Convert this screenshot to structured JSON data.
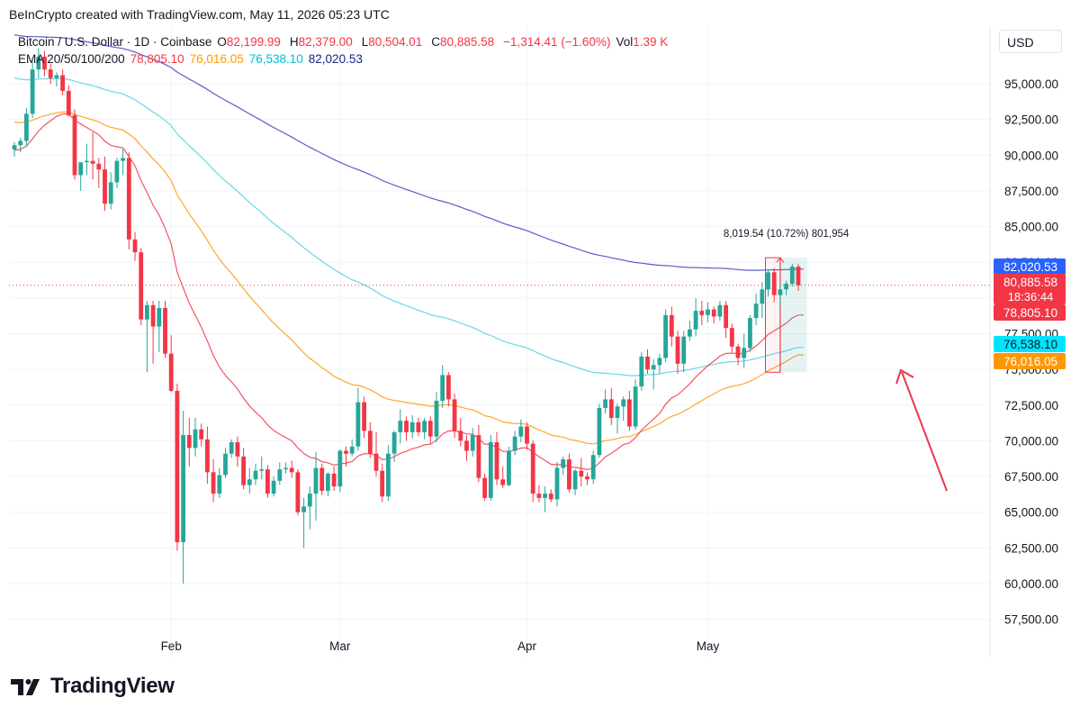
{
  "header": {
    "credit": "BeInCrypto created with TradingView.com, May 11, 2026 05:23 UTC"
  },
  "legend": {
    "symbol": "Bitcoin / U.S. Dollar · 1D · Coinbase",
    "open_label": "O",
    "open": "82,199.99",
    "high_label": "H",
    "high": "82,379.00",
    "low_label": "L",
    "low": "80,504.01",
    "close_label": "C",
    "close": "80,885.58",
    "change": "−1,314.41 (−1.60%)",
    "vol_label": "Vol",
    "vol": "1.39 K",
    "ema_label": "EMA 20/50/100/200",
    "ema20": "78,805.10",
    "ema50": "76,016.05",
    "ema100": "76,538.10",
    "ema200": "82,020.53"
  },
  "currency_button": "USD",
  "footer": {
    "brand": "TradingView"
  },
  "colors": {
    "up": "#26a69a",
    "down": "#f23645",
    "ema20": "#f23645",
    "ema50": "#ff9800",
    "ema100": "#4dd0e1",
    "ema200": "#3f3fbf"
  },
  "chart_data": {
    "type": "candlestick",
    "ylim": [
      55500,
      97500
    ],
    "y_ticks": [
      57500,
      60000,
      62500,
      65000,
      67500,
      70000,
      72500,
      75000,
      77500,
      80000,
      82500,
      85000,
      87500,
      90000,
      92500,
      95000
    ],
    "y_tick_labels": [
      "57,500.00",
      "60,000.00",
      "62,500.00",
      "65,000.00",
      "67,500.00",
      "70,000.00",
      "72,500.00",
      "75,000.00",
      "77,500.00",
      "80,000.00",
      "82,500.00",
      "85,000.00",
      "87,500.00",
      "90,000.00",
      "92,500.00",
      "95,000.00"
    ],
    "x_ticks": [
      {
        "label": "Feb",
        "index": 26
      },
      {
        "label": "Mar",
        "index": 54
      },
      {
        "label": "Apr",
        "index": 85
      },
      {
        "label": "May",
        "index": 115
      }
    ],
    "candles": [
      [
        90400,
        90900,
        89900,
        90700
      ],
      [
        90700,
        91200,
        90200,
        91000
      ],
      [
        91000,
        93300,
        90600,
        92900
      ],
      [
        92900,
        96600,
        92600,
        96000
      ],
      [
        96000,
        97500,
        95400,
        96900
      ],
      [
        96900,
        97300,
        95500,
        96000
      ],
      [
        96000,
        96400,
        95000,
        95400
      ],
      [
        95400,
        95800,
        94800,
        95600
      ],
      [
        95600,
        96000,
        94200,
        94500
      ],
      [
        94500,
        94900,
        92700,
        92800
      ],
      [
        92800,
        93200,
        88300,
        88600
      ],
      [
        88600,
        89100,
        87500,
        89500
      ],
      [
        89500,
        90800,
        88600,
        89600
      ],
      [
        89600,
        91600,
        88300,
        89400
      ],
      [
        89400,
        89800,
        87700,
        89000
      ],
      [
        89000,
        89900,
        86100,
        86600
      ],
      [
        86600,
        88800,
        86200,
        88100
      ],
      [
        88100,
        89800,
        87700,
        89600
      ],
      [
        89600,
        90400,
        88600,
        89800
      ],
      [
        89800,
        90200,
        83400,
        84100
      ],
      [
        84100,
        84600,
        82600,
        83200
      ],
      [
        83200,
        83500,
        78100,
        78500
      ],
      [
        78500,
        79800,
        74800,
        79500
      ],
      [
        79500,
        79800,
        75400,
        78000
      ],
      [
        78000,
        79800,
        76200,
        79300
      ],
      [
        79300,
        79800,
        75800,
        76100
      ],
      [
        76100,
        77400,
        73400,
        73500
      ],
      [
        73500,
        74000,
        62300,
        62900
      ],
      [
        62900,
        72100,
        60000,
        70400
      ],
      [
        70400,
        71600,
        68200,
        69500
      ],
      [
        69500,
        71600,
        68900,
        70800
      ],
      [
        70800,
        71200,
        69600,
        70100
      ],
      [
        70100,
        71000,
        67000,
        67800
      ],
      [
        67800,
        68700,
        65700,
        66300
      ],
      [
        66300,
        68100,
        66000,
        67600
      ],
      [
        67600,
        69500,
        67400,
        69100
      ],
      [
        69100,
        70100,
        68800,
        69900
      ],
      [
        69900,
        70300,
        68200,
        68900
      ],
      [
        68900,
        69500,
        66600,
        66900
      ],
      [
        66900,
        68100,
        66300,
        67300
      ],
      [
        67300,
        68400,
        66900,
        67900
      ],
      [
        67900,
        68900,
        67300,
        68000
      ],
      [
        68000,
        68300,
        66000,
        66300
      ],
      [
        66300,
        67500,
        66100,
        67200
      ],
      [
        67200,
        68500,
        66900,
        68000
      ],
      [
        68000,
        68500,
        67700,
        68100
      ],
      [
        68100,
        68600,
        67400,
        67800
      ],
      [
        67800,
        68000,
        64800,
        65000
      ],
      [
        65000,
        66000,
        62500,
        65400
      ],
      [
        65400,
        66800,
        63800,
        66300
      ],
      [
        66300,
        69200,
        64400,
        68100
      ],
      [
        68100,
        68400,
        66200,
        66500
      ],
      [
        66500,
        67800,
        66100,
        67700
      ],
      [
        67700,
        68200,
        66500,
        66800
      ],
      [
        66800,
        69400,
        66400,
        69300
      ],
      [
        69300,
        69600,
        68200,
        69100
      ],
      [
        69100,
        70100,
        68900,
        69600
      ],
      [
        69600,
        73700,
        69300,
        72700
      ],
      [
        72700,
        73100,
        70200,
        70700
      ],
      [
        70700,
        71300,
        68800,
        69100
      ],
      [
        69100,
        70600,
        67500,
        67900
      ],
      [
        67900,
        68400,
        65700,
        66100
      ],
      [
        66100,
        69700,
        65800,
        69100
      ],
      [
        69100,
        70700,
        68500,
        70600
      ],
      [
        70600,
        72200,
        69800,
        71400
      ],
      [
        71400,
        71700,
        70000,
        70600
      ],
      [
        70600,
        71800,
        70200,
        71300
      ],
      [
        71300,
        71600,
        70300,
        70600
      ],
      [
        70600,
        71600,
        70100,
        71400
      ],
      [
        71400,
        71700,
        69800,
        70300
      ],
      [
        70300,
        73400,
        69900,
        72800
      ],
      [
        72800,
        75300,
        72300,
        74600
      ],
      [
        74600,
        74800,
        72400,
        72900
      ],
      [
        72900,
        73300,
        70200,
        70700
      ],
      [
        70700,
        71600,
        69600,
        70000
      ],
      [
        70000,
        70400,
        68600,
        69300
      ],
      [
        69300,
        70900,
        68900,
        70400
      ],
      [
        70400,
        71100,
        67100,
        67400
      ],
      [
        67400,
        67700,
        65800,
        66000
      ],
      [
        66000,
        70400,
        65800,
        69900
      ],
      [
        69900,
        70600,
        66900,
        67300
      ],
      [
        67300,
        68200,
        66700,
        66900
      ],
      [
        66900,
        69600,
        66800,
        69300
      ],
      [
        69300,
        70700,
        69000,
        70300
      ],
      [
        70300,
        71500,
        69900,
        71000
      ],
      [
        71000,
        71300,
        69400,
        69800
      ],
      [
        69800,
        70000,
        65700,
        66300
      ],
      [
        66300,
        66900,
        65700,
        66000
      ],
      [
        66000,
        66800,
        65000,
        66300
      ],
      [
        66300,
        66600,
        65700,
        65900
      ],
      [
        65900,
        68500,
        65400,
        68100
      ],
      [
        68100,
        68900,
        67600,
        68700
      ],
      [
        68700,
        69100,
        66400,
        66600
      ],
      [
        66600,
        68000,
        66200,
        67900
      ],
      [
        67900,
        68800,
        66800,
        67500
      ],
      [
        67500,
        67800,
        66900,
        67300
      ],
      [
        67300,
        69300,
        67000,
        69000
      ],
      [
        69000,
        72600,
        68800,
        72300
      ],
      [
        72300,
        73600,
        71900,
        72900
      ],
      [
        72900,
        73700,
        71100,
        71600
      ],
      [
        71600,
        72600,
        70500,
        72400
      ],
      [
        72400,
        73100,
        71400,
        72900
      ],
      [
        72900,
        73500,
        70700,
        71000
      ],
      [
        71000,
        74300,
        70800,
        73800
      ],
      [
        73800,
        76200,
        73500,
        75900
      ],
      [
        75900,
        76400,
        74700,
        75000
      ],
      [
        75000,
        75700,
        73600,
        75300
      ],
      [
        75300,
        76100,
        74700,
        75800
      ],
      [
        75800,
        79200,
        75500,
        78800
      ],
      [
        78800,
        79400,
        76600,
        77300
      ],
      [
        77300,
        77700,
        74700,
        75400
      ],
      [
        75400,
        77700,
        74800,
        77300
      ],
      [
        77300,
        78400,
        77000,
        77800
      ],
      [
        77800,
        80000,
        77300,
        79100
      ],
      [
        79100,
        79800,
        78100,
        78800
      ],
      [
        78800,
        79700,
        78300,
        79200
      ],
      [
        79200,
        79400,
        78200,
        78700
      ],
      [
        78700,
        79800,
        78400,
        79500
      ],
      [
        79500,
        79800,
        77200,
        77900
      ],
      [
        77900,
        78200,
        76200,
        76600
      ],
      [
        76600,
        76800,
        75300,
        75800
      ],
      [
        75800,
        77500,
        75100,
        76500
      ],
      [
        76500,
        78800,
        76200,
        78600
      ],
      [
        78600,
        80300,
        78100,
        79600
      ],
      [
        79600,
        81100,
        78600,
        80600
      ],
      [
        80600,
        82000,
        80100,
        81800
      ],
      [
        81800,
        82100,
        79700,
        80200
      ],
      [
        80200,
        81000,
        79500,
        80600
      ],
      [
        80600,
        81200,
        80200,
        81000
      ],
      [
        81000,
        82400,
        80800,
        82200
      ],
      [
        82200,
        82379,
        80504,
        80886
      ]
    ],
    "ema_last": {
      "ema20": 78805.1,
      "ema50": 76016.05,
      "ema100": 76538.1,
      "ema200": 82020.53
    },
    "measure": {
      "label": "8,019.54 (10.72%) 801,954",
      "from_index": 125,
      "to_index": 131,
      "low": 74800,
      "high": 82820,
      "pivot_index": 127
    },
    "price_labels": [
      {
        "key": "ema200",
        "text": "82,020.53",
        "value": 82020.53,
        "color": "#2962ff"
      },
      {
        "key": "close",
        "text": "80,885.58",
        "countdown": "18:36:44",
        "value": 80885.58,
        "color": "#f23645"
      },
      {
        "key": "ema20",
        "text": "78,805.10",
        "value": 78805.1,
        "color": "#f23645"
      },
      {
        "key": "ema100",
        "text": "76,538.10",
        "value": 76538.1,
        "color": "#00e5ff"
      },
      {
        "key": "ema50",
        "text": "76,016.05",
        "value": 76016.05,
        "color": "#ff9800"
      }
    ]
  }
}
